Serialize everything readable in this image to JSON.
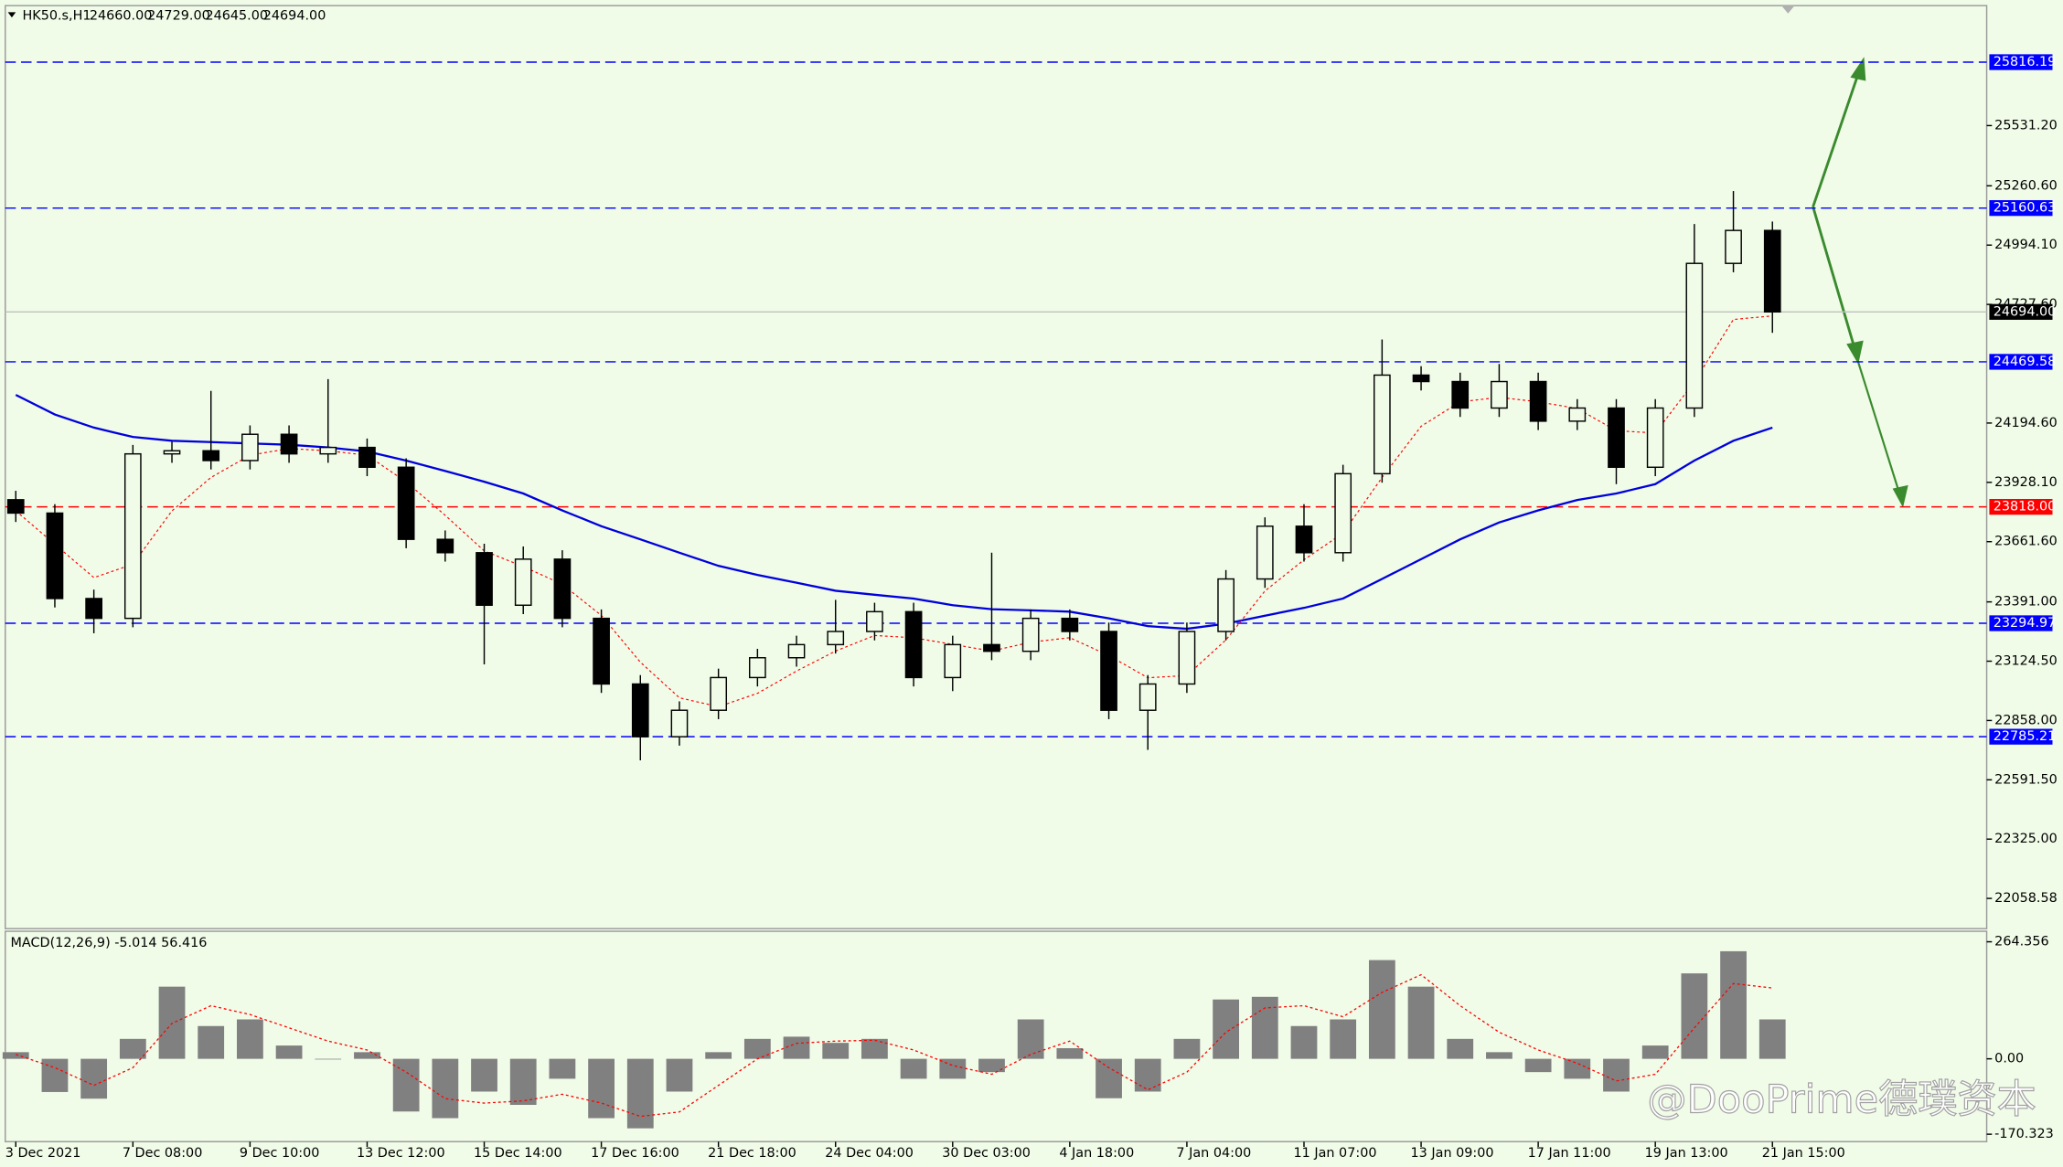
{
  "chart_data": [
    {
      "type": "candlestick",
      "title": "HK50.s,H1",
      "ohlc": [
        {
          "value": 24660,
          "label": "24660.00"
        },
        {
          "value": 24729,
          "label": "24729.00"
        },
        {
          "value": 24645,
          "label": "24645.00"
        },
        {
          "value": 24694,
          "label": "24694.00"
        }
      ],
      "categories": [
        "3 Dec 2021",
        null,
        null,
        "7 Dec 08:00",
        null,
        null,
        "9 Dec 10:00",
        null,
        null,
        "13 Dec 12:00",
        null,
        null,
        "15 Dec 14:00",
        null,
        null,
        "17 Dec 16:00",
        null,
        null,
        "21 Dec 18:00",
        null,
        null,
        "24 Dec 04:00",
        null,
        null,
        "30 Dec 03:00",
        null,
        null,
        "4 Jan 18:00",
        null,
        null,
        "7 Jan 04:00",
        null,
        null,
        "11 Jan 07:00",
        null,
        null,
        "13 Jan 09:00",
        null,
        null,
        "17 Jan 11:00",
        null,
        null,
        "19 Jan 13:00",
        null,
        null,
        "21 Jan 15:00"
      ],
      "open": [
        23850,
        23790,
        23406,
        23317,
        24056,
        24070,
        24026,
        24144,
        24056,
        24085,
        23996,
        23672,
        23612,
        23376,
        23583,
        23317,
        23022,
        22785,
        22904,
        23051,
        23140,
        23199,
        23258,
        23347,
        23051,
        23199,
        23169,
        23317,
        23258,
        22904,
        23022,
        23258,
        23494,
        23731,
        23612,
        23967,
        24410,
        24381,
        24262,
        24381,
        24203,
        24262,
        23996,
        24262,
        24912,
        25060
      ],
      "high": [
        23890,
        23830,
        23446,
        24096,
        24110,
        24339,
        24184,
        24184,
        24392,
        24125,
        24036,
        23712,
        23652,
        23640,
        23623,
        23357,
        23062,
        22944,
        23091,
        23180,
        23239,
        23400,
        23387,
        23387,
        23239,
        23612,
        23357,
        23357,
        23298,
        23062,
        23298,
        23534,
        23771,
        23830,
        24007,
        24570,
        24450,
        24421,
        24460,
        24421,
        24302,
        24302,
        24302,
        25089,
        25237,
        25100
      ],
      "low": [
        23750,
        23366,
        23250,
        23277,
        24016,
        23986,
        23986,
        24016,
        24016,
        23956,
        23632,
        23572,
        23110,
        23336,
        23277,
        22982,
        22679,
        22745,
        22864,
        23011,
        23100,
        23159,
        23218,
        23011,
        22990,
        23129,
        23129,
        23218,
        22864,
        22726,
        22982,
        23218,
        23454,
        23572,
        23572,
        23927,
        24341,
        24222,
        24222,
        24163,
        24163,
        23920,
        23956,
        24222,
        24872,
        24600
      ],
      "close": [
        23790,
        23406,
        23317,
        24056,
        24070,
        24026,
        24144,
        24056,
        24085,
        23996,
        23672,
        23612,
        23376,
        23583,
        23317,
        23022,
        22785,
        22904,
        23051,
        23140,
        23199,
        23258,
        23347,
        23051,
        23199,
        23169,
        23317,
        23258,
        22904,
        23022,
        23258,
        23494,
        23731,
        23612,
        23967,
        24410,
        24381,
        24262,
        24381,
        24203,
        24262,
        23996,
        24262,
        24912,
        25060,
        24694
      ],
      "overlays": [
        {
          "color": "#0000dd",
          "dashed": false,
          "values": [
            24321,
            24233,
            24174,
            24132,
            24115,
            24109,
            24103,
            24097,
            24085,
            24067,
            24026,
            23979,
            23931,
            23878,
            23802,
            23731,
            23672,
            23612,
            23553,
            23512,
            23477,
            23441,
            23423,
            23406,
            23376,
            23358,
            23353,
            23347,
            23317,
            23282,
            23270,
            23293,
            23329,
            23364,
            23406,
            23494,
            23583,
            23672,
            23748,
            23802,
            23849,
            23878,
            23920,
            24026,
            24115,
            24174
          ]
        },
        {
          "color": "#ff0000",
          "dashed": true,
          "values": [
            23800,
            23650,
            23500,
            23560,
            23800,
            23950,
            24050,
            24080,
            24070,
            24050,
            23930,
            23780,
            23620,
            23550,
            23470,
            23330,
            23120,
            22960,
            22920,
            22980,
            23080,
            23170,
            23240,
            23230,
            23200,
            23170,
            23210,
            23230,
            23150,
            23050,
            23060,
            23220,
            23440,
            23580,
            23700,
            23950,
            24180,
            24290,
            24310,
            24290,
            24260,
            24160,
            24150,
            24380,
            24660,
            24676
          ]
        }
      ],
      "ylim": [
        21922.7,
        26070.2
      ],
      "yticks": [
        {
          "value": 25531.2,
          "label": "25531.20"
        },
        {
          "value": 25260.6,
          "label": "25260.60"
        },
        {
          "value": 24994.1,
          "label": "24994.10"
        },
        {
          "value": 24727.6,
          "label": "24727.60"
        },
        {
          "value": 24194.6,
          "label": "24194.60"
        },
        {
          "value": 23928.1,
          "label": "23928.10"
        },
        {
          "value": 23661.6,
          "label": "23661.60"
        },
        {
          "value": 23391,
          "label": "23391.00"
        },
        {
          "value": 23124.5,
          "label": "23124.50"
        },
        {
          "value": 22858,
          "label": "22858.00"
        },
        {
          "value": 22591.5,
          "label": "22591.50"
        },
        {
          "value": 22325,
          "label": "22325.00"
        },
        22058.58
      ],
      "levels": [
        {
          "value": 25816.19,
          "color": "#0000ff"
        },
        {
          "value": 25160.63,
          "color": "#0000ff"
        },
        {
          "value": 24469.58,
          "color": "#0000ff"
        },
        {
          "value": 23818,
          "label": "23818.00",
          "color": "#ff0000"
        },
        {
          "value": 23294.97,
          "color": "#0000ff"
        },
        {
          "value": 22785.21,
          "color": "#0000ff"
        }
      ],
      "last_price": {
        "value": 24694,
        "label": "24694.00"
      },
      "watermark": "@DooPrime德璞资本"
    },
    {
      "type": "bar",
      "title": "MACD(12,26,9) -5.014 56.416",
      "values": [
        15,
        -75,
        -90,
        45,
        163,
        74,
        89,
        30,
        0,
        15,
        -119,
        -134,
        -74,
        -104,
        -45,
        -134,
        -157,
        -74,
        15,
        45,
        50,
        36,
        45,
        -45,
        -45,
        -30,
        89,
        24,
        -89,
        -74,
        45,
        134,
        140,
        74,
        89,
        223,
        163,
        45,
        15,
        -30,
        -45,
        -74,
        30,
        193,
        243,
        89
      ],
      "signal": [
        10,
        -20,
        -60,
        -20,
        80,
        120,
        100,
        70,
        40,
        20,
        -30,
        -90,
        -100,
        -95,
        -80,
        -100,
        -130,
        -120,
        -60,
        0,
        35,
        40,
        42,
        20,
        -15,
        -35,
        10,
        40,
        -20,
        -70,
        -30,
        60,
        115,
        120,
        95,
        150,
        190,
        120,
        60,
        20,
        -10,
        -50,
        -35,
        70,
        170,
        160
      ],
      "color": "#808080",
      "signal_color": "#ff0000",
      "ylim": [
        -187.1,
        288.1
      ],
      "yticks": [
        264.356,
        {
          "value": 0,
          "label": "0.00"
        },
        -170.323
      ]
    }
  ]
}
